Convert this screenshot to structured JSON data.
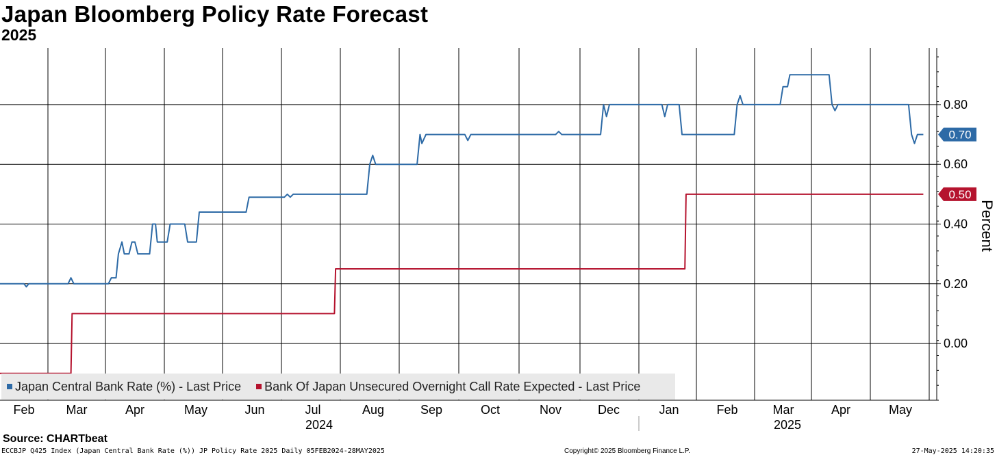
{
  "title": "Japan Bloomberg Policy Rate Forecast",
  "subtitle": "2025",
  "source": "Source: CHARTbeat",
  "footer": {
    "left": "ECCBJP Q425 Index (Japan Central Bank Rate (%)) JP Policy Rate 2025  Daily 05FEB2024-28MAY2025",
    "middle": "Copyright© 2025 Bloomberg Finance L.P.",
    "right": "27-May-2025 14:20:35"
  },
  "colors": {
    "blue": "#2d6aa6",
    "red": "#b5132e",
    "grid": "#000000"
  },
  "chart_data": {
    "type": "line",
    "title": "Japan Bloomberg Policy Rate Forecast",
    "subtitle": "2025",
    "ylabel": "Percent",
    "ylim": [
      -0.19,
      0.99
    ],
    "y_ticks": [
      0.8,
      0.6,
      0.4,
      0.2,
      0.0
    ],
    "y_tick_labels": [
      "0.80",
      "0.60",
      "0.40",
      "0.20",
      "0.00"
    ],
    "x_domain": [
      0.0,
      16.0
    ],
    "x_month_labels": [
      "Feb",
      "Mar",
      "Apr",
      "May",
      "Jun",
      "Jul",
      "Aug",
      "Sep",
      "Oct",
      "Nov",
      "Dec",
      "Jan",
      "Feb",
      "Mar",
      "Apr",
      "May"
    ],
    "x_year_labels": [
      "2024",
      "2025"
    ],
    "legend": [
      "Japan Central Bank Rate (%) - Last Price",
      "Bank Of Japan Unsecured Overnight Call Rate Expected - Last Price"
    ],
    "series": [
      {
        "name": "Japan Central Bank Rate (%) - Last Price",
        "color": "#2d6aa6",
        "last_label": "0.70",
        "points": [
          [
            0.0,
            0.2
          ],
          [
            0.5,
            0.2
          ],
          [
            0.55,
            0.19
          ],
          [
            0.6,
            0.2
          ],
          [
            1.35,
            0.2
          ],
          [
            1.4,
            0.22
          ],
          [
            1.45,
            0.2
          ],
          [
            2.05,
            0.2
          ],
          [
            2.1,
            0.22
          ],
          [
            2.18,
            0.22
          ],
          [
            2.22,
            0.3
          ],
          [
            2.28,
            0.34
          ],
          [
            2.32,
            0.3
          ],
          [
            2.4,
            0.3
          ],
          [
            2.45,
            0.34
          ],
          [
            2.5,
            0.34
          ],
          [
            2.55,
            0.3
          ],
          [
            2.75,
            0.3
          ],
          [
            2.8,
            0.4
          ],
          [
            2.85,
            0.4
          ],
          [
            2.88,
            0.34
          ],
          [
            3.05,
            0.34
          ],
          [
            3.1,
            0.4
          ],
          [
            3.35,
            0.4
          ],
          [
            3.4,
            0.34
          ],
          [
            3.55,
            0.34
          ],
          [
            3.6,
            0.44
          ],
          [
            4.4,
            0.44
          ],
          [
            4.45,
            0.49
          ],
          [
            5.05,
            0.49
          ],
          [
            5.1,
            0.5
          ],
          [
            5.15,
            0.49
          ],
          [
            5.2,
            0.5
          ],
          [
            6.45,
            0.5
          ],
          [
            6.5,
            0.6
          ],
          [
            6.55,
            0.63
          ],
          [
            6.6,
            0.6
          ],
          [
            7.3,
            0.6
          ],
          [
            7.35,
            0.7
          ],
          [
            7.38,
            0.67
          ],
          [
            7.45,
            0.7
          ],
          [
            8.1,
            0.7
          ],
          [
            8.15,
            0.68
          ],
          [
            8.2,
            0.7
          ],
          [
            9.6,
            0.7
          ],
          [
            9.65,
            0.71
          ],
          [
            9.7,
            0.7
          ],
          [
            10.35,
            0.7
          ],
          [
            10.4,
            0.8
          ],
          [
            10.45,
            0.76
          ],
          [
            10.5,
            0.8
          ],
          [
            11.4,
            0.8
          ],
          [
            11.45,
            0.76
          ],
          [
            11.5,
            0.8
          ],
          [
            11.7,
            0.8
          ],
          [
            11.75,
            0.7
          ],
          [
            12.65,
            0.7
          ],
          [
            12.7,
            0.8
          ],
          [
            12.75,
            0.83
          ],
          [
            12.8,
            0.8
          ],
          [
            13.45,
            0.8
          ],
          [
            13.5,
            0.86
          ],
          [
            13.58,
            0.86
          ],
          [
            13.62,
            0.9
          ],
          [
            14.3,
            0.9
          ],
          [
            14.35,
            0.8
          ],
          [
            14.4,
            0.78
          ],
          [
            14.45,
            0.8
          ],
          [
            15.65,
            0.8
          ],
          [
            15.7,
            0.7
          ],
          [
            15.75,
            0.67
          ],
          [
            15.8,
            0.7
          ],
          [
            15.9,
            0.7
          ]
        ]
      },
      {
        "name": "Bank Of Japan Unsecured Overnight Call Rate Expected - Last Price",
        "color": "#b5132e",
        "last_label": "0.50",
        "points": [
          [
            0.0,
            -0.1
          ],
          [
            1.4,
            -0.1
          ],
          [
            1.42,
            0.1
          ],
          [
            5.9,
            0.1
          ],
          [
            5.92,
            0.25
          ],
          [
            11.8,
            0.25
          ],
          [
            11.82,
            0.5
          ],
          [
            15.9,
            0.5
          ]
        ]
      }
    ]
  }
}
